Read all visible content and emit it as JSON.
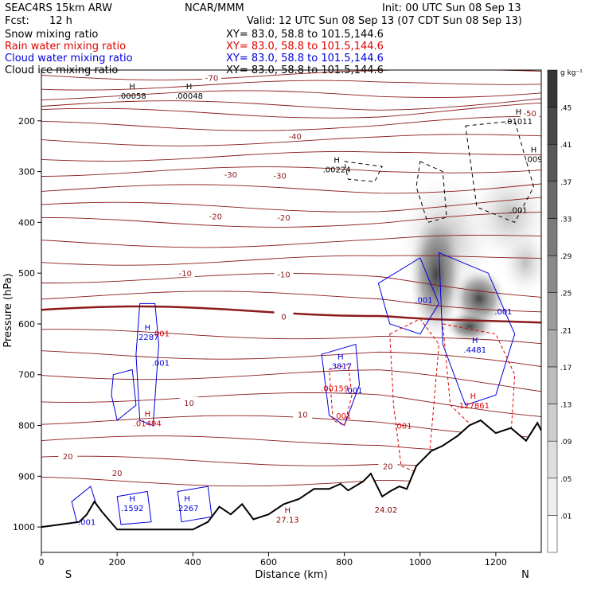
{
  "header": {
    "model": "SEAC4RS 15km ARW",
    "producer": "NCAR/MMM",
    "init": "Init: 00 UTC Sun 08 Sep 13",
    "fcst_label": "Fcst:",
    "fcst_value": "12 h",
    "valid": "Valid: 12 UTC Sun 08 Sep 13 (07 CDT Sun 08 Sep 13)"
  },
  "fields": [
    {
      "name": "Snow mixing ratio",
      "color": "#000000",
      "xy": "XY=  83.0, 58.8 to 101.5,144.6"
    },
    {
      "name": "Rain water mixing ratio",
      "color": "#e00000",
      "xy": "XY=  83.0, 58.8 to 101.5,144.6"
    },
    {
      "name": "Cloud water mixing ratio",
      "color": "#0000dd",
      "xy": "XY=  83.0, 58.8 to 101.5,144.6"
    },
    {
      "name": "Cloud ice mixing ratio",
      "color": "#000000",
      "xy": "XY=  83.0, 58.8 to 101.5,144.6"
    }
  ],
  "colorbar": {
    "unit": "g kg⁻¹",
    "levels": [
      ".01",
      ".05",
      ".09",
      ".13",
      ".17",
      ".21",
      ".25",
      ".29",
      ".33",
      ".37",
      ".41",
      ".45"
    ]
  },
  "chart_data": {
    "type": "contour",
    "xlabel": "Distance (km)",
    "ylabel": "Pressure (hPa)",
    "xlim": [
      0,
      1320
    ],
    "ylim": [
      1050,
      100
    ],
    "x_ticks": [
      0,
      200,
      400,
      600,
      800,
      1000,
      1200
    ],
    "y_ticks": [
      200,
      300,
      400,
      500,
      600,
      700,
      800,
      900,
      1000
    ],
    "x_end_labels": {
      "left": "S",
      "right": "N"
    },
    "temperature_contours": [
      {
        "label": "-70",
        "x": 450,
        "p": 115
      },
      {
        "label": "-50",
        "x": 1290,
        "p": 185
      },
      {
        "label": "-40",
        "x": 670,
        "p": 230
      },
      {
        "label": "-30",
        "x": 500,
        "p": 305
      },
      {
        "label": "-30",
        "x": 630,
        "p": 308
      },
      {
        "label": "-20",
        "x": 460,
        "p": 388
      },
      {
        "label": "-20",
        "x": 640,
        "p": 390
      },
      {
        "label": "-10",
        "x": 380,
        "p": 500
      },
      {
        "label": "-10",
        "x": 640,
        "p": 502
      },
      {
        "label": "0",
        "x": 640,
        "p": 585
      },
      {
        "label": "10",
        "x": 390,
        "p": 755
      },
      {
        "label": "10",
        "x": 690,
        "p": 778
      },
      {
        "label": "20",
        "x": 70,
        "p": 860
      },
      {
        "label": "20",
        "x": 200,
        "p": 893
      },
      {
        "label": "20",
        "x": 915,
        "p": 880
      }
    ],
    "extrema_labels": [
      {
        "type": "H",
        "value": ".00058",
        "x": 240,
        "p": 150,
        "color": "#000000"
      },
      {
        "type": "H",
        "value": ".00048",
        "x": 390,
        "p": 150,
        "color": "#000000"
      },
      {
        "type": "H",
        "value": ".01011",
        "x": 1260,
        "p": 200,
        "color": "#000000"
      },
      {
        "type": "H",
        "value": ".009",
        "x": 1300,
        "p": 275,
        "color": "#000000"
      },
      {
        "type": "H",
        "value": ".00224",
        "x": 780,
        "p": 295,
        "color": "#000000"
      },
      {
        "type": "",
        "value": ".001",
        "x": 1260,
        "p": 375,
        "color": "#000000"
      },
      {
        "type": "H",
        "value": ".2287",
        "x": 280,
        "p": 625,
        "color": "#0000dd"
      },
      {
        "type": "",
        "value": ".001",
        "x": 315,
        "p": 618,
        "color": "#e00000"
      },
      {
        "type": "",
        "value": ".001",
        "x": 315,
        "p": 676,
        "color": "#0000dd"
      },
      {
        "type": "H",
        "value": ".3817",
        "x": 790,
        "p": 682,
        "color": "#0000dd"
      },
      {
        "type": "",
        "value": ".00159",
        "x": 775,
        "p": 726,
        "color": "#e00000"
      },
      {
        "type": "",
        "value": ".001",
        "x": 825,
        "p": 730,
        "color": "#0000dd"
      },
      {
        "type": "",
        "value": ".001",
        "x": 795,
        "p": 780,
        "color": "#e00000"
      },
      {
        "type": "H",
        "value": ".01494",
        "x": 280,
        "p": 795,
        "color": "#e00000"
      },
      {
        "type": "",
        "value": ".001",
        "x": 1010,
        "p": 552,
        "color": "#0000dd"
      },
      {
        "type": "",
        "value": ".001",
        "x": 1220,
        "p": 575,
        "color": "#0000dd"
      },
      {
        "type": "H",
        "value": ".4481",
        "x": 1145,
        "p": 650,
        "color": "#0000dd"
      },
      {
        "type": "H",
        "value": ".127861",
        "x": 1140,
        "p": 760,
        "color": "#e00000"
      },
      {
        "type": "",
        "value": ".001",
        "x": 955,
        "p": 800,
        "color": "#e00000"
      },
      {
        "type": "H",
        "value": ".1592",
        "x": 240,
        "p": 962,
        "color": "#0000dd"
      },
      {
        "type": "H",
        "value": ".2267",
        "x": 385,
        "p": 962,
        "color": "#0000dd"
      },
      {
        "type": "",
        "value": ".001",
        "x": 120,
        "p": 990,
        "color": "#0000dd"
      },
      {
        "type": "H",
        "value": "27.13",
        "x": 650,
        "p": 985,
        "color": "#8b0000"
      },
      {
        "type": "",
        "value": "24.02",
        "x": 910,
        "p": 965,
        "color": "#8b0000"
      }
    ],
    "terrain_p": [
      [
        0,
        1000
      ],
      [
        40,
        996
      ],
      [
        100,
        990
      ],
      [
        120,
        975
      ],
      [
        140,
        950
      ],
      [
        160,
        970
      ],
      [
        200,
        1005
      ],
      [
        260,
        1005
      ],
      [
        320,
        1005
      ],
      [
        400,
        1005
      ],
      [
        440,
        990
      ],
      [
        470,
        960
      ],
      [
        500,
        975
      ],
      [
        530,
        955
      ],
      [
        560,
        985
      ],
      [
        600,
        975
      ],
      [
        640,
        955
      ],
      [
        680,
        945
      ],
      [
        720,
        925
      ],
      [
        760,
        925
      ],
      [
        790,
        915
      ],
      [
        810,
        928
      ],
      [
        850,
        910
      ],
      [
        870,
        895
      ],
      [
        900,
        940
      ],
      [
        920,
        930
      ],
      [
        945,
        920
      ],
      [
        965,
        925
      ],
      [
        990,
        880
      ],
      [
        1030,
        850
      ],
      [
        1060,
        840
      ],
      [
        1100,
        820
      ],
      [
        1130,
        800
      ],
      [
        1160,
        790
      ],
      [
        1200,
        815
      ],
      [
        1240,
        805
      ],
      [
        1280,
        830
      ],
      [
        1310,
        795
      ],
      [
        1320,
        810
      ]
    ]
  }
}
